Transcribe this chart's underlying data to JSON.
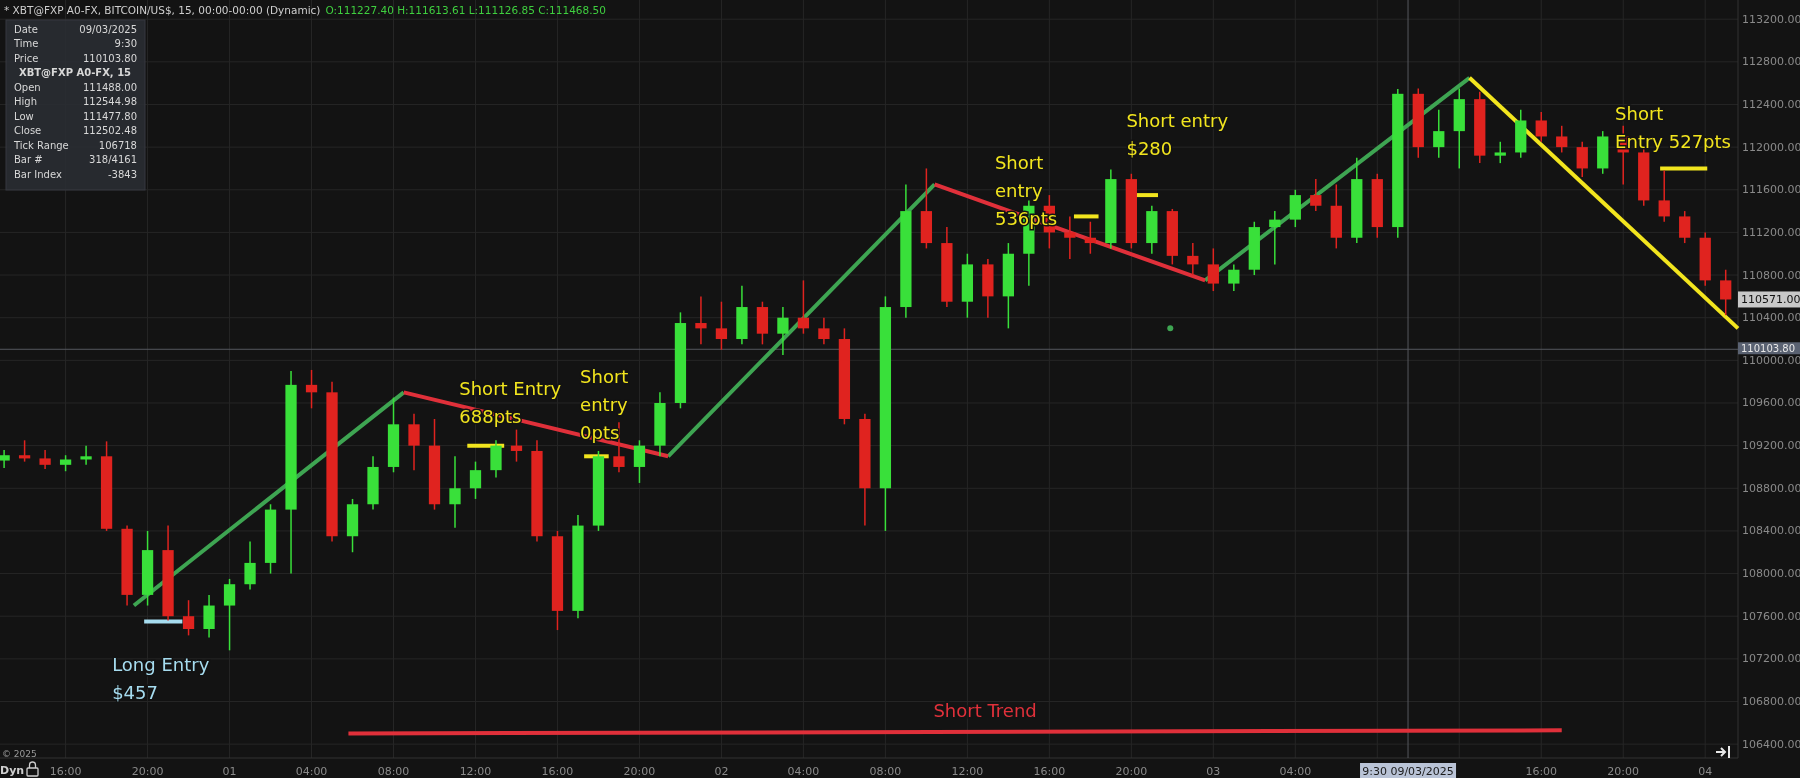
{
  "chart_data": {
    "type": "candlestick",
    "title": "* XBT@FXP A0-FX, BITCOIN/US$, 15, 00:00-00:00 (Dynamic)",
    "subtitle": "O:111227.40 H:111613.61 L:111126.85 C:111468.50",
    "annotations": [
      "Date",
      "09/03/2025",
      "Time",
      "9:30",
      "Price",
      "110103.80",
      "XBT@FXP A0-FX, 15",
      "Open",
      "111488.00",
      "High",
      "112544.98",
      "Low",
      "111477.80",
      "Close",
      "112502.48",
      "Tick Range",
      "106718",
      "Bar #",
      "318/4161",
      "Bar Index",
      "-3843",
      "© 2025",
      "Dyn",
      "110571.00"
    ],
    "grid": true,
    "xlim": [
      "2025-08-31T12:48",
      "2025-09-04T01:36"
    ],
    "xticks": [
      {
        "value": "2025-08-31T16:00",
        "label": "16:00"
      },
      {
        "value": "2025-08-31T20:00",
        "label": "20:00"
      },
      {
        "value": "2025-09-01T00:00",
        "label": "01"
      },
      {
        "value": "2025-09-01T04:00",
        "label": "04:00"
      },
      {
        "value": "2025-09-01T08:00",
        "label": "08:00"
      },
      {
        "value": "2025-09-01T12:00",
        "label": "12:00"
      },
      {
        "value": "2025-09-01T16:00",
        "label": "16:00"
      },
      {
        "value": "2025-09-01T20:00",
        "label": "20:00"
      },
      {
        "value": "2025-09-02T00:00",
        "label": "02"
      },
      {
        "value": "2025-09-02T04:00",
        "label": "04:00"
      },
      {
        "value": "2025-09-02T08:00",
        "label": "08:00"
      },
      {
        "value": "2025-09-02T12:00",
        "label": "12:00"
      },
      {
        "value": "2025-09-02T16:00",
        "label": "16:00"
      },
      {
        "value": "2025-09-02T20:00",
        "label": "20:00"
      },
      {
        "value": "2025-09-03T00:00",
        "label": "03"
      },
      {
        "value": "2025-09-03T04:00",
        "label": "04:00"
      },
      {
        "value": "2025-09-03T08:00",
        "label": null
      },
      {
        "value": "2025-09-03T12:00",
        "label": null
      },
      {
        "value": "2025-09-03T16:00",
        "label": "16:00"
      },
      {
        "value": "2025-09-03T20:00",
        "label": "20:00"
      },
      {
        "value": "2025-09-04T00:00",
        "label": "04"
      }
    ],
    "ylim": [
      106270,
      113380
    ],
    "yticks": [
      {
        "value": 106400,
        "label": "106400.00"
      },
      {
        "value": 106800,
        "label": "106800.00"
      },
      {
        "value": 107200,
        "label": "107200.00"
      },
      {
        "value": 107600,
        "label": "107600.00"
      },
      {
        "value": 108000,
        "label": "108000.00"
      },
      {
        "value": 108400,
        "label": "108400.00"
      },
      {
        "value": 108800,
        "label": "108800.00"
      },
      {
        "value": 109200,
        "label": "109200.00"
      },
      {
        "value": 109600,
        "label": "109600.00"
      },
      {
        "value": 110000,
        "label": "110000.00"
      },
      {
        "value": 110400,
        "label": "110400.00"
      },
      {
        "value": 110800,
        "label": "110800.00"
      },
      {
        "value": 111200,
        "label": "111200.00"
      },
      {
        "value": 111600,
        "label": "111600.00"
      },
      {
        "value": 112000,
        "label": "112000.00"
      },
      {
        "value": 112400,
        "label": "112400.00"
      },
      {
        "value": 112800,
        "label": "112800.00"
      },
      {
        "value": 113200,
        "label": "113200.00"
      }
    ],
    "ref_lines": [
      {
        "axis": "y",
        "value": 110103.8,
        "label": "110103.80"
      },
      {
        "axis": "x",
        "value": "2025-09-03T09:30",
        "label": "9:30 09/03/2025"
      }
    ],
    "x": [
      "2025-08-31T13:00",
      "2025-08-31T14:00",
      "2025-08-31T15:00",
      "2025-08-31T16:00",
      "2025-08-31T17:00",
      "2025-08-31T18:00",
      "2025-08-31T19:00",
      "2025-08-31T20:00",
      "2025-08-31T21:00",
      "2025-08-31T22:00",
      "2025-08-31T23:00",
      "2025-09-01T00:00",
      "2025-09-01T01:00",
      "2025-09-01T02:00",
      "2025-09-01T03:00",
      "2025-09-01T04:00",
      "2025-09-01T05:00",
      "2025-09-01T06:00",
      "2025-09-01T07:00",
      "2025-09-01T08:00",
      "2025-09-01T09:00",
      "2025-09-01T10:00",
      "2025-09-01T11:00",
      "2025-09-01T12:00",
      "2025-09-01T13:00",
      "2025-09-01T14:00",
      "2025-09-01T15:00",
      "2025-09-01T16:00",
      "2025-09-01T17:00",
      "2025-09-01T18:00",
      "2025-09-01T19:00",
      "2025-09-01T20:00",
      "2025-09-01T21:00",
      "2025-09-01T22:00",
      "2025-09-01T23:00",
      "2025-09-02T00:00",
      "2025-09-02T01:00",
      "2025-09-02T02:00",
      "2025-09-02T03:00",
      "2025-09-02T04:00",
      "2025-09-02T05:00",
      "2025-09-02T06:00",
      "2025-09-02T07:00",
      "2025-09-02T08:00",
      "2025-09-02T09:00",
      "2025-09-02T10:00",
      "2025-09-02T11:00",
      "2025-09-02T12:00",
      "2025-09-02T13:00",
      "2025-09-02T14:00",
      "2025-09-02T15:00",
      "2025-09-02T16:00",
      "2025-09-02T17:00",
      "2025-09-02T18:00",
      "2025-09-02T19:00",
      "2025-09-02T20:00",
      "2025-09-02T21:00",
      "2025-09-02T22:00",
      "2025-09-02T23:00",
      "2025-09-03T00:00",
      "2025-09-03T01:00",
      "2025-09-03T02:00",
      "2025-09-03T03:00",
      "2025-09-03T04:00",
      "2025-09-03T05:00",
      "2025-09-03T06:00",
      "2025-09-03T07:00",
      "2025-09-03T08:00",
      "2025-09-03T09:00",
      "2025-09-03T10:00",
      "2025-09-03T11:00",
      "2025-09-03T12:00",
      "2025-09-03T13:00",
      "2025-09-03T14:00",
      "2025-09-03T15:00",
      "2025-09-03T16:00",
      "2025-09-03T17:00",
      "2025-09-03T18:00",
      "2025-09-03T19:00",
      "2025-09-03T20:00",
      "2025-09-03T21:00",
      "2025-09-03T22:00",
      "2025-09-03T23:00",
      "2025-09-04T00:00",
      "2025-09-04T01:00"
    ],
    "ohlc": [
      [
        109060,
        109160,
        108990,
        109110
      ],
      [
        109110,
        109250,
        109050,
        109080
      ],
      [
        109080,
        109160,
        108980,
        109020
      ],
      [
        109020,
        109110,
        108960,
        109070
      ],
      [
        109070,
        109200,
        109020,
        109100
      ],
      [
        109100,
        109240,
        108400,
        108420
      ],
      [
        108420,
        108450,
        107700,
        107800
      ],
      [
        107800,
        108400,
        107700,
        108220
      ],
      [
        108220,
        108450,
        107560,
        107600
      ],
      [
        107600,
        107750,
        107420,
        107480
      ],
      [
        107480,
        107800,
        107400,
        107700
      ],
      [
        107700,
        107950,
        107280,
        107900
      ],
      [
        107900,
        108300,
        107850,
        108100
      ],
      [
        108100,
        108650,
        108000,
        108600
      ],
      [
        108600,
        109900,
        108000,
        109770
      ],
      [
        109770,
        109910,
        109550,
        109700
      ],
      [
        109700,
        109800,
        108300,
        108350
      ],
      [
        108350,
        108700,
        108200,
        108650
      ],
      [
        108650,
        109100,
        108600,
        109000
      ],
      [
        109000,
        109650,
        108950,
        109400
      ],
      [
        109400,
        109500,
        108970,
        109200
      ],
      [
        109200,
        109450,
        108600,
        108650
      ],
      [
        108650,
        109100,
        108430,
        108800
      ],
      [
        108800,
        109050,
        108700,
        108970
      ],
      [
        108970,
        109250,
        108900,
        109200
      ],
      [
        109200,
        109350,
        109050,
        109150
      ],
      [
        109150,
        109250,
        108300,
        108350
      ],
      [
        108350,
        108400,
        107470,
        107650
      ],
      [
        107650,
        108550,
        107580,
        108450
      ],
      [
        108450,
        109150,
        108400,
        109100
      ],
      [
        109100,
        109420,
        108950,
        109000
      ],
      [
        109000,
        109250,
        108850,
        109200
      ],
      [
        109200,
        109700,
        109100,
        109600
      ],
      [
        109600,
        110450,
        109550,
        110350
      ],
      [
        110350,
        110600,
        110150,
        110300
      ],
      [
        110300,
        110550,
        110100,
        110200
      ],
      [
        110200,
        110700,
        110150,
        110500
      ],
      [
        110500,
        110550,
        110150,
        110250
      ],
      [
        110250,
        110500,
        110050,
        110400
      ],
      [
        110400,
        110750,
        110250,
        110300
      ],
      [
        110300,
        110400,
        110150,
        110200
      ],
      [
        110200,
        110300,
        109400,
        109450
      ],
      [
        109450,
        109500,
        108450,
        108800
      ],
      [
        108800,
        110600,
        108400,
        110500
      ],
      [
        110500,
        111650,
        110400,
        111400
      ],
      [
        111400,
        111800,
        111050,
        111100
      ],
      [
        111100,
        111250,
        110500,
        110550
      ],
      [
        110550,
        111000,
        110400,
        110900
      ],
      [
        110900,
        110950,
        110400,
        110600
      ],
      [
        110600,
        111100,
        110300,
        111000
      ],
      [
        111000,
        111500,
        110700,
        111450
      ],
      [
        111450,
        111550,
        111050,
        111200
      ],
      [
        111200,
        111350,
        110950,
        111150
      ],
      [
        111150,
        111300,
        111000,
        111100
      ],
      [
        111100,
        111790,
        111050,
        111700
      ],
      [
        111700,
        111750,
        111050,
        111100
      ],
      [
        111100,
        111450,
        111000,
        111400
      ],
      [
        111400,
        111420,
        110900,
        110980
      ],
      [
        110980,
        111100,
        110800,
        110900
      ],
      [
        110900,
        111050,
        110650,
        110720
      ],
      [
        110720,
        110900,
        110650,
        110850
      ],
      [
        110850,
        111300,
        110800,
        111250
      ],
      [
        111250,
        111400,
        110900,
        111320
      ],
      [
        111320,
        111600,
        111250,
        111550
      ],
      [
        111550,
        111700,
        111400,
        111450
      ],
      [
        111450,
        111650,
        111050,
        111150
      ],
      [
        111150,
        111900,
        111100,
        111700
      ],
      [
        111700,
        111750,
        111150,
        111250
      ],
      [
        111250,
        112545,
        111150,
        112500
      ],
      [
        112500,
        112550,
        111900,
        112000
      ],
      [
        112000,
        112350,
        111900,
        112150
      ],
      [
        112150,
        112550,
        111800,
        112450
      ],
      [
        112450,
        112520,
        111850,
        111920
      ],
      [
        111920,
        112050,
        111850,
        111950
      ],
      [
        111950,
        112350,
        111900,
        112250
      ],
      [
        112250,
        112330,
        112050,
        112100
      ],
      [
        112100,
        112200,
        111950,
        112000
      ],
      [
        112000,
        112050,
        111720,
        111800
      ],
      [
        111800,
        112150,
        111750,
        112100
      ],
      [
        112100,
        112200,
        111650,
        111950
      ],
      [
        111950,
        112000,
        111450,
        111500
      ],
      [
        111500,
        111780,
        111300,
        111350
      ],
      [
        111350,
        111400,
        111100,
        111150
      ],
      [
        111150,
        111200,
        110700,
        110750
      ],
      [
        110750,
        110850,
        110424,
        110571
      ]
    ],
    "series": [
      {
        "type": "line",
        "color": "#3ea552",
        "x": [
          "2025-08-31T19:20",
          "2025-09-01T08:30",
          "2025-09-01T15:00",
          "2025-09-01T21:24",
          "2025-09-02T10:24",
          "2025-09-02T17:00",
          "2025-09-02T23:36",
          "2025-09-03T12:30"
        ],
        "values": [
          107700,
          109700,
          null,
          109100,
          111650,
          null,
          110750,
          112650
        ]
      },
      {
        "type": "line",
        "color": "#e0303a",
        "x": [
          "2025-09-01T08:30",
          "2025-09-01T21:24",
          "2025-09-02T04:00",
          "2025-09-02T10:24",
          "2025-09-02T23:36"
        ],
        "values": [
          109700,
          109100,
          null,
          111650,
          110750
        ]
      },
      {
        "type": "line",
        "color": "#f2e51e",
        "x": [
          "2025-09-03T12:30",
          "2025-09-04T01:36"
        ],
        "values": [
          112650,
          110300
        ]
      },
      {
        "type": "line",
        "name": "Short Trend",
        "color": "#e0303a",
        "x": [
          "2025-09-01T05:48",
          "2025-09-03T17:00"
        ],
        "values": [
          106500,
          106530
        ]
      },
      {
        "type": "line",
        "name": "Long Entry\n$457",
        "color": "#a6dcef",
        "x": [
          "2025-08-31T19:50",
          "2025-08-31T21:42"
        ],
        "values": [
          107550,
          107550
        ]
      },
      {
        "type": "line",
        "name": "Short Entry\n688pts",
        "color": "#f2e51e",
        "x": [
          "2025-09-01T11:36",
          "2025-09-01T13:24"
        ],
        "values": [
          109200,
          109200
        ]
      },
      {
        "type": "line",
        "name": "Short\nentry\n0pts",
        "color": "#f2e51e",
        "x": [
          "2025-09-01T17:18",
          "2025-09-01T18:30"
        ],
        "values": [
          109100,
          109100
        ]
      },
      {
        "type": "line",
        "name": "Short\nentry\n536pts",
        "color": "#f2e51e",
        "x": [
          "2025-09-02T17:12",
          "2025-09-02T18:24"
        ],
        "values": [
          111350,
          111350
        ]
      },
      {
        "type": "line",
        "name": "Short entry\n$280",
        "color": "#f2e51e",
        "x": [
          "2025-09-02T20:12",
          "2025-09-02T21:18"
        ],
        "values": [
          111550,
          111550
        ]
      },
      {
        "type": "line",
        "name": "Short\nEntry 527pts",
        "color": "#f2e51e",
        "x": [
          "2025-09-03T21:48",
          "2025-09-04T00:06"
        ],
        "values": [
          111800,
          111800
        ]
      },
      {
        "type": "scatter",
        "marker": "circle",
        "color": "#3ea552",
        "x": [
          "2025-09-02T21:54"
        ],
        "values": [
          110300
        ]
      }
    ]
  }
}
